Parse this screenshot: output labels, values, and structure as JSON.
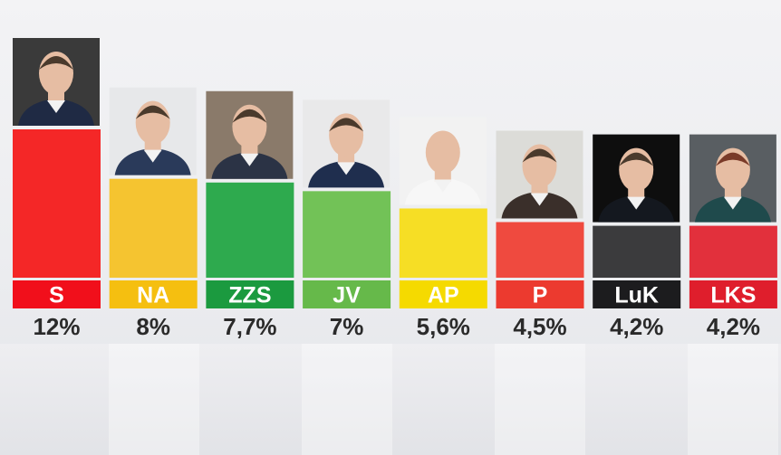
{
  "chart_data": {
    "type": "bar",
    "title": "",
    "xlabel": "",
    "ylabel": "",
    "ylim": [
      0,
      12
    ],
    "grid": false,
    "legend": "none",
    "categories": [
      "S",
      "NA",
      "ZZS",
      "JV",
      "AP",
      "P",
      "LuK",
      "LKS"
    ],
    "values": [
      12,
      8,
      7.7,
      7,
      5.6,
      4.5,
      4.2,
      4.2
    ],
    "value_labels": [
      "12%",
      "8%",
      "7,7%",
      "7%",
      "5,6%",
      "4,5%",
      "4,2%",
      "4,2%"
    ],
    "colors": {
      "bars": [
        "#f42727",
        "#f5c430",
        "#2eaa4e",
        "#72c257",
        "#f6de25",
        "#ef4a3f",
        "#3b3b3d",
        "#e2303c"
      ],
      "labels": [
        "#f10f1b",
        "#f5bf10",
        "#1b9a3f",
        "#66b94a",
        "#f5da00",
        "#ec3a2f",
        "#1c1c1e",
        "#df1e2c"
      ],
      "label_text": [
        "#ffffff",
        "#ffffff",
        "#ffffff",
        "#ffffff",
        "#ffffff",
        "#ffffff",
        "#ffffff",
        "#ffffff"
      ],
      "value_text": "#2a2a2a"
    }
  }
}
